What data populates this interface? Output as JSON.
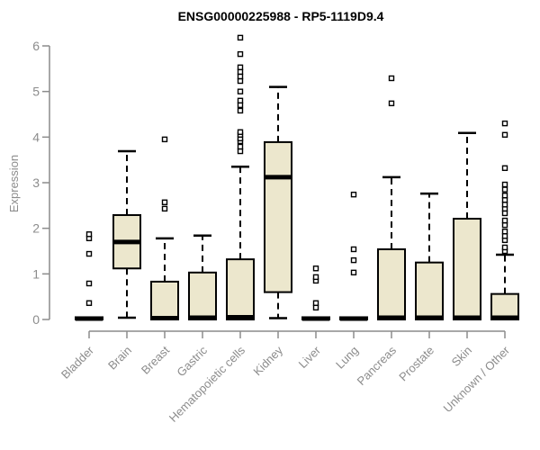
{
  "chart_data": {
    "type": "boxplot",
    "title": "ENSG00000225988 - RP5-1119D9.4",
    "ylabel": "Expression",
    "xlabel": "",
    "ylim": [
      0,
      6.2
    ],
    "yticks": [
      0,
      1,
      2,
      3,
      4,
      5,
      6
    ],
    "grid": false,
    "legend": null,
    "categories": [
      "Bladder",
      "Brain",
      "Breast",
      "Gastric",
      "Hematopoietic cells",
      "Kidney",
      "Liver",
      "Lung",
      "Pancreas",
      "Prostate",
      "Skin",
      "Unknown / Other"
    ],
    "boxes": [
      {
        "category": "Bladder",
        "whisker_low": 0,
        "q1": 0,
        "median": 0.02,
        "q3": 0.05,
        "whisker_high": 0.05,
        "outliers": [
          0.36,
          0.79,
          1.44,
          1.78,
          1.87
        ]
      },
      {
        "category": "Brain",
        "whisker_low": 0.04,
        "q1": 1.12,
        "median": 1.7,
        "q3": 2.29,
        "whisker_high": 3.69,
        "outliers": []
      },
      {
        "category": "Breast",
        "whisker_low": 0,
        "q1": 0,
        "median": 0.03,
        "q3": 0.83,
        "whisker_high": 1.78,
        "outliers": [
          2.43,
          2.57,
          3.95
        ]
      },
      {
        "category": "Gastric",
        "whisker_low": 0,
        "q1": 0,
        "median": 0.04,
        "q3": 1.03,
        "whisker_high": 1.84,
        "outliers": []
      },
      {
        "category": "Hematopoietic cells",
        "whisker_low": 0,
        "q1": 0,
        "median": 0.05,
        "q3": 1.32,
        "whisker_high": 3.35,
        "outliers": [
          3.69,
          3.79,
          3.91,
          3.97,
          4.05,
          4.11,
          4.58,
          4.7,
          4.8,
          5.0,
          5.23,
          5.33,
          5.43,
          5.53,
          5.82,
          6.18
        ]
      },
      {
        "category": "Kidney",
        "whisker_low": 0.03,
        "q1": 0.6,
        "median": 3.12,
        "q3": 3.89,
        "whisker_high": 5.1,
        "outliers": []
      },
      {
        "category": "Liver",
        "whisker_low": 0,
        "q1": 0,
        "median": 0.02,
        "q3": 0.05,
        "whisker_high": 0.05,
        "outliers": [
          0.26,
          0.36,
          0.85,
          0.93,
          1.12
        ]
      },
      {
        "category": "Lung",
        "whisker_low": 0,
        "q1": 0,
        "median": 0.02,
        "q3": 0.05,
        "whisker_high": 0.05,
        "outliers": [
          1.03,
          1.3,
          1.54,
          2.74
        ]
      },
      {
        "category": "Pancreas",
        "whisker_low": 0,
        "q1": 0,
        "median": 0.04,
        "q3": 1.54,
        "whisker_high": 3.12,
        "outliers": [
          4.74,
          5.29
        ]
      },
      {
        "category": "Prostate",
        "whisker_low": 0,
        "q1": 0,
        "median": 0.04,
        "q3": 1.25,
        "whisker_high": 2.76,
        "outliers": []
      },
      {
        "category": "Skin",
        "whisker_low": 0,
        "q1": 0,
        "median": 0.04,
        "q3": 2.21,
        "whisker_high": 4.09,
        "outliers": []
      },
      {
        "category": "Unknown / Other",
        "whisker_low": 0,
        "q1": 0,
        "median": 0.04,
        "q3": 0.56,
        "whisker_high": 1.42,
        "outliers": [
          1.5,
          1.58,
          1.74,
          1.83,
          1.93,
          2.07,
          2.17,
          2.33,
          2.43,
          2.52,
          2.62,
          2.72,
          2.85,
          2.96,
          3.32,
          4.05,
          4.3
        ]
      }
    ],
    "styles": {
      "box_fill": "#ECE7CD",
      "box_border": "#000000",
      "median_color": "#000000",
      "whisker_color": "#000000",
      "outlier_color": "#000000",
      "axis_color": "#8C8C8C",
      "title_color": "#000000",
      "background": "#FFFFFF"
    }
  }
}
